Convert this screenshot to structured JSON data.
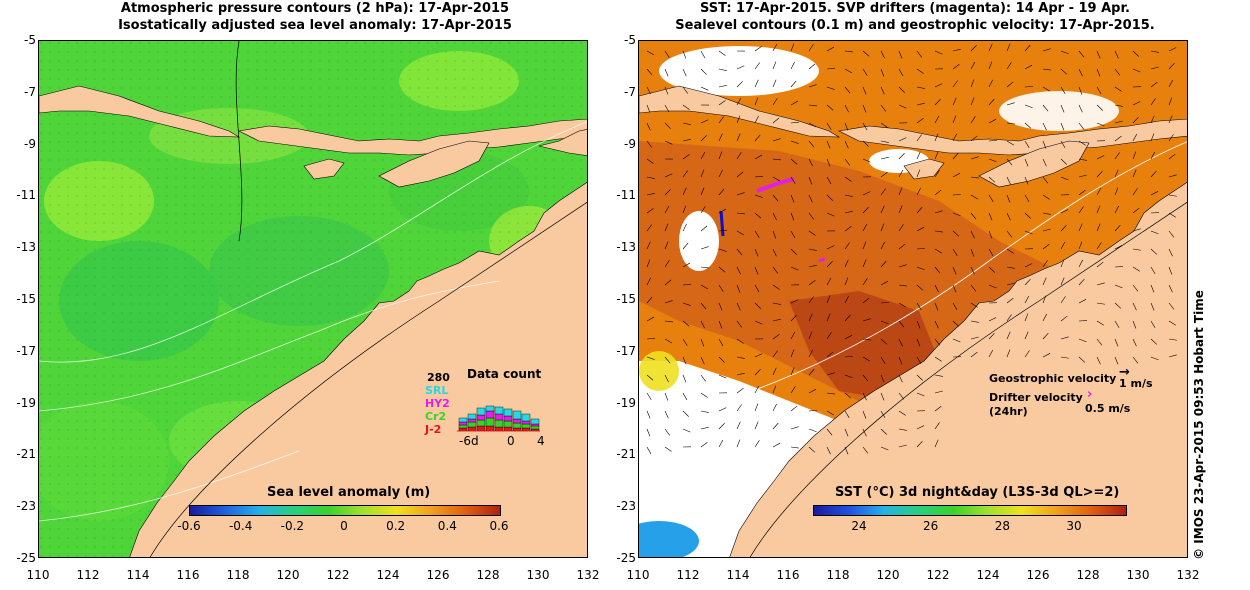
{
  "left_title": {
    "line1": "Atmospheric pressure contours (2 hPa): 17-Apr-2015",
    "line2": "Isostatically adjusted sea level anomaly: 17-Apr-2015"
  },
  "right_title": {
    "line1": "SST: 17-Apr-2015. SVP drifters (magenta): 14 Apr - 19 Apr.",
    "line2": "Sealevel contours (0.1 m) and geostrophic velocity: 17-Apr-2015."
  },
  "axes": {
    "y_labels": [
      "-5",
      "-7",
      "-9",
      "-11",
      "-13",
      "-15",
      "-17",
      "-19",
      "-21",
      "-23",
      "-25"
    ],
    "x_labels": [
      "110",
      "112",
      "114",
      "116",
      "118",
      "120",
      "122",
      "124",
      "126",
      "128",
      "130",
      "132"
    ]
  },
  "left_colorbar": {
    "title": "Sea level anomaly (m)",
    "ticks": [
      "-0.6",
      "-0.4",
      "-0.2",
      "0",
      "0.2",
      "0.4",
      "0.6"
    ]
  },
  "right_colorbar": {
    "title": "SST (°C) 3d night&day (L3S-3d QL>=2)",
    "ticks": [
      "24",
      "26",
      "28",
      "30"
    ]
  },
  "data_count": {
    "title": "Data count",
    "max": "280",
    "missions": [
      "SRL",
      "HY2",
      "Cr2",
      "J-2"
    ],
    "x_ticks": [
      "-6d",
      "0",
      "4"
    ]
  },
  "velocity_legend": {
    "geostrophic": "Geostrophic velocity",
    "geostrophic_scale": "1 m/s",
    "drifter": "Drifter velocity",
    "drifter_sub": "(24hr)",
    "drifter_scale": "0.5 m/s"
  },
  "copyright": "© IMOS 23-Apr-2015 09:53 Hobart Time",
  "colors": {
    "land": "#f9c9a0",
    "sla_green": "#4fd43a",
    "sla_light": "#7ee84a",
    "sst_orange": "#e87a10",
    "sst_dark": "#b94510",
    "srl": "#27d8e0",
    "hy2": "#e21ee8",
    "cr2": "#3ad22a",
    "j2": "#e01818"
  }
}
